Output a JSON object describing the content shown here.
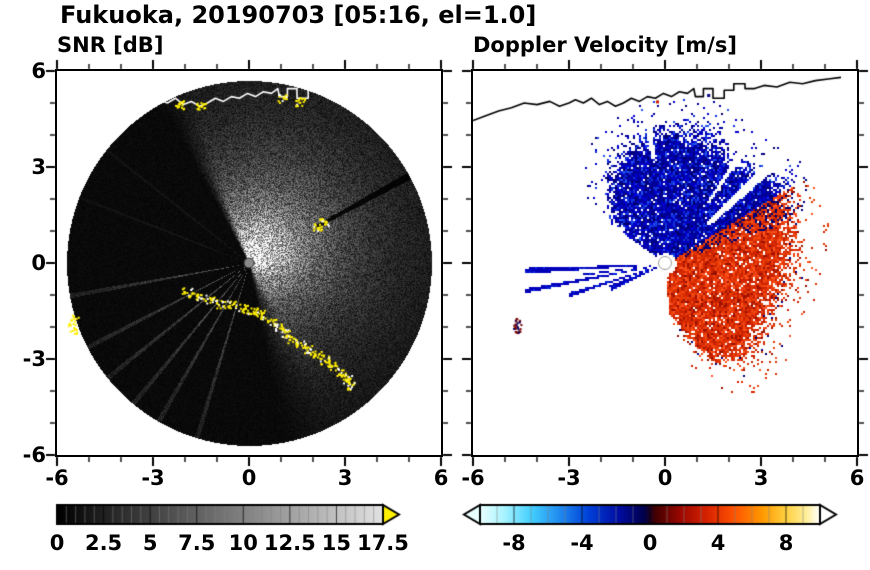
{
  "title": "Fukuoka, 20190703 [05:16, el=1.0]",
  "panels": [
    {
      "title": "SNR [dB]",
      "xtick_labels": [
        "-6",
        "-3",
        "0",
        "3",
        "6"
      ],
      "ytick_labels": [
        "6",
        "3",
        "0",
        "-3",
        "-6"
      ]
    },
    {
      "title": "Doppler Velocity [m/s]",
      "xtick_labels": [
        "-6",
        "-3",
        "0",
        "3",
        "6"
      ]
    }
  ],
  "chart_data": [
    {
      "type": "heatmap",
      "title": "SNR [dB]",
      "xlabel": "",
      "ylabel": "",
      "xlim": [
        -6,
        6
      ],
      "ylim": [
        -6,
        6
      ],
      "xticks": [
        -6,
        -3,
        0,
        3,
        6
      ],
      "yticks": [
        -6,
        -3,
        0,
        3,
        6
      ],
      "minor_tick_step": 1,
      "scan_radius": 5.7,
      "colorbar": {
        "range": [
          0,
          17.5
        ],
        "tick_values": [
          0,
          2.5,
          5,
          7.5,
          10,
          12.5,
          15,
          17.5
        ],
        "tick_labels": [
          "0",
          "2.5",
          "5",
          "7.5",
          "10",
          "12.5",
          "15",
          "17.5"
        ],
        "cell_step": 0.5,
        "colormap_stops": [
          [
            0,
            "#000000"
          ],
          [
            1,
            "#e2e2e2"
          ]
        ],
        "over_arrow_color": "#ffef00"
      },
      "features": {
        "bright_sector_azimuth_rad": [
          -0.5,
          2.95
        ],
        "bright_ray_azimuths_rad": [
          -1.75,
          -2.05,
          -2.25,
          -2.45,
          -2.62,
          -2.85
        ],
        "faint_ray_azimuths_rad": [
          -0.9,
          -1.2
        ],
        "dark_ray_azimuth_rad": 1.07,
        "clutter_color": "#ffee00",
        "coastline_color": "#ffffff",
        "clutter_points": [
          [
            -5.5,
            -1.75
          ],
          [
            -5.55,
            -2.05
          ],
          [
            -1.95,
            -0.9
          ],
          [
            -1.6,
            -1.0
          ],
          [
            -1.25,
            -1.1
          ],
          [
            -0.9,
            -1.25
          ],
          [
            -0.55,
            -1.3
          ],
          [
            -0.2,
            -1.4
          ],
          [
            0.1,
            -1.5
          ],
          [
            0.4,
            -1.6
          ],
          [
            0.7,
            -1.8
          ],
          [
            0.95,
            -2.0
          ],
          [
            1.15,
            -2.2
          ],
          [
            1.35,
            -2.4
          ],
          [
            1.6,
            -2.55
          ],
          [
            1.85,
            -2.7
          ],
          [
            2.1,
            -2.85
          ],
          [
            2.35,
            -3.0
          ],
          [
            2.6,
            -3.2
          ],
          [
            2.85,
            -3.4
          ],
          [
            3.05,
            -3.6
          ],
          [
            3.2,
            -3.8
          ],
          [
            2.1,
            1.15
          ],
          [
            2.35,
            1.3
          ],
          [
            -1.5,
            4.9
          ],
          [
            -2.2,
            4.95
          ],
          [
            1.0,
            5.15
          ],
          [
            1.6,
            5.05
          ]
        ]
      }
    },
    {
      "type": "heatmap",
      "title": "Doppler Velocity [m/s]",
      "xlabel": "",
      "ylabel": "",
      "xlim": [
        -6,
        6
      ],
      "ylim": [
        -6,
        6
      ],
      "xticks": [
        -6,
        -3,
        0,
        3,
        6
      ],
      "yticks": [
        -6,
        -3,
        0,
        3,
        6
      ],
      "minor_tick_step": 1,
      "colorbar": {
        "range": [
          -10,
          10
        ],
        "tick_values": [
          -8,
          -4,
          0,
          4,
          8
        ],
        "tick_labels": [
          "-8",
          "-4",
          "0",
          "4",
          "8"
        ],
        "cell_step": 1,
        "colormap_stops": [
          [
            0,
            "#eaffff"
          ],
          [
            0.07,
            "#aaf4ff"
          ],
          [
            0.15,
            "#44d0ff"
          ],
          [
            0.24,
            "#1e86ee"
          ],
          [
            0.32,
            "#0040d8"
          ],
          [
            0.41,
            "#000ca0"
          ],
          [
            0.485,
            "#000048"
          ],
          [
            0.515,
            "#400000"
          ],
          [
            0.59,
            "#9c0800"
          ],
          [
            0.67,
            "#d82400"
          ],
          [
            0.75,
            "#ff5500"
          ],
          [
            0.83,
            "#ff9900"
          ],
          [
            0.9,
            "#ffd040"
          ],
          [
            0.96,
            "#ffef9a"
          ],
          [
            1,
            "#ffffff"
          ]
        ],
        "under_arrow_color": "#eaffff",
        "over_arrow_color": "#ffffff"
      },
      "features": {
        "coastline_color": "#000000",
        "blue_fan": {
          "az_range_rad": [
            -0.95,
            1.02
          ],
          "max_radius_profile": [
            [
              -0.95,
              2.2
            ],
            [
              -0.6,
              3.6
            ],
            [
              -0.3,
              4.3
            ],
            [
              0.0,
              4.6
            ],
            [
              0.3,
              4.7
            ],
            [
              0.6,
              4.2
            ],
            [
              0.85,
              4.6
            ],
            [
              1.02,
              4.9
            ]
          ],
          "colors": [
            "#000099",
            "#0000cc",
            "#1133dd",
            "#000066",
            "#2255ee"
          ]
        },
        "red_fan": {
          "az_range_rad": [
            1.02,
            3.08
          ],
          "max_radius_profile": [
            [
              1.02,
              4.9
            ],
            [
              1.3,
              4.6
            ],
            [
              1.57,
              4.3
            ],
            [
              1.9,
              4.0
            ],
            [
              2.2,
              4.1
            ],
            [
              2.5,
              4.3
            ],
            [
              2.75,
              3.6
            ],
            [
              2.9,
              2.6
            ],
            [
              3.08,
              1.6
            ]
          ],
          "colors": [
            "#cc2200",
            "#e03300",
            "#f04411",
            "#991100",
            "#ff5522"
          ]
        },
        "gap_wedges": [
          [
            0.82,
            0.035,
            1.8
          ],
          [
            0.6,
            0.018,
            2.3
          ],
          [
            -0.12,
            0.02,
            3.3
          ]
        ],
        "west_spokes": [
          [
            -1.62,
            0.02,
            4.4
          ],
          [
            -1.76,
            0.016,
            4.5
          ],
          [
            -1.88,
            0.02,
            3.2
          ],
          [
            -1.7,
            0.012,
            2.6
          ],
          [
            -1.98,
            0.05,
            1.9
          ]
        ],
        "isolated_blobs": [
          [
            -4.6,
            -1.85
          ],
          [
            -4.65,
            -2.05
          ]
        ],
        "coast_specks": [
          [
            -0.25,
            5.05,
            "#cc2200"
          ],
          [
            1.35,
            5.25,
            "#000088"
          ]
        ]
      }
    }
  ],
  "coastline": [
    [
      -6.0,
      4.45
    ],
    [
      -5.6,
      4.6
    ],
    [
      -5.2,
      4.75
    ],
    [
      -4.8,
      4.85
    ],
    [
      -4.4,
      5.0
    ],
    [
      -4.0,
      4.95
    ],
    [
      -3.6,
      5.05
    ],
    [
      -3.3,
      4.9
    ],
    [
      -3.0,
      5.0
    ],
    [
      -2.8,
      5.1
    ],
    [
      -2.55,
      5.0
    ],
    [
      -2.3,
      5.15
    ],
    [
      -2.05,
      4.95
    ],
    [
      -1.8,
      5.05
    ],
    [
      -1.55,
      4.9
    ],
    [
      -1.3,
      5.0
    ],
    [
      -1.05,
      5.15
    ],
    [
      -0.8,
      5.05
    ],
    [
      -0.55,
      5.2
    ],
    [
      -0.3,
      5.15
    ],
    [
      -0.05,
      5.3
    ],
    [
      0.2,
      5.2
    ],
    [
      0.45,
      5.35
    ],
    [
      0.7,
      5.3
    ],
    [
      0.9,
      5.45
    ],
    [
      0.95,
      5.2
    ],
    [
      1.2,
      5.2
    ],
    [
      1.2,
      5.45
    ],
    [
      1.5,
      5.45
    ],
    [
      1.5,
      5.15
    ],
    [
      1.85,
      5.15
    ],
    [
      1.85,
      5.4
    ],
    [
      2.15,
      5.4
    ],
    [
      2.15,
      5.6
    ],
    [
      2.5,
      5.6
    ],
    [
      2.5,
      5.45
    ],
    [
      2.8,
      5.45
    ],
    [
      3.1,
      5.55
    ],
    [
      3.5,
      5.5
    ],
    [
      3.9,
      5.65
    ],
    [
      4.3,
      5.6
    ],
    [
      4.7,
      5.7
    ],
    [
      5.1,
      5.75
    ],
    [
      5.5,
      5.8
    ]
  ]
}
